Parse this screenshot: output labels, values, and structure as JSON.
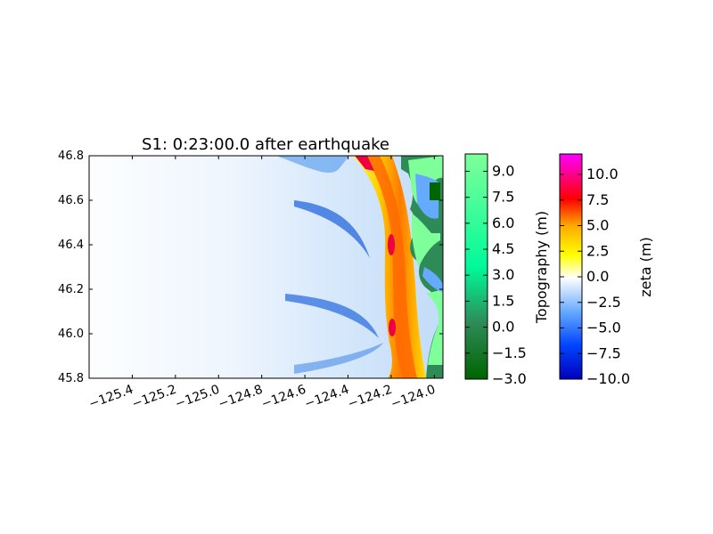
{
  "chart_data": {
    "type": "heatmap",
    "title": "S1: 0:23:00.0 after earthquake",
    "x_ticks": [
      "−125.4",
      "−125.2",
      "−125.0",
      "−124.8",
      "−124.6",
      "−124.4",
      "−124.2",
      "−124.0"
    ],
    "x_tick_values": [
      -125.4,
      -125.2,
      -125.0,
      -124.8,
      -124.6,
      -124.4,
      -124.2,
      -124.0
    ],
    "y_ticks": [
      "45.8",
      "46.0",
      "46.2",
      "46.4",
      "46.6",
      "46.8"
    ],
    "y_tick_values": [
      45.8,
      46.0,
      46.2,
      46.4,
      46.6,
      46.8
    ],
    "xlim": [
      -125.6,
      -123.96
    ],
    "ylim": [
      45.8,
      46.8
    ],
    "colorbars": [
      {
        "label": "Topography (m)",
        "ticks": [
          "−3.0",
          "−1.5",
          "0.0",
          "1.5",
          "3.0",
          "4.5",
          "6.0",
          "7.5",
          "9.0"
        ],
        "range": [
          -3.0,
          10.0
        ],
        "colors": [
          "#006400",
          "#2e8b57",
          "#00fa9a",
          "#7fff9a"
        ]
      },
      {
        "label": "zeta (m)",
        "ticks": [
          "−10.0",
          "−7.5",
          "−5.0",
          "−2.5",
          "0.0",
          "2.5",
          "5.0",
          "7.5",
          "10.0"
        ],
        "range": [
          -10.0,
          12.0
        ],
        "colors": [
          "#0000bb",
          "#0055ff",
          "#66aaff",
          "#ffffff",
          "#ffff00",
          "#ff8800",
          "#ff0044",
          "#ff00ff"
        ]
      }
    ]
  }
}
